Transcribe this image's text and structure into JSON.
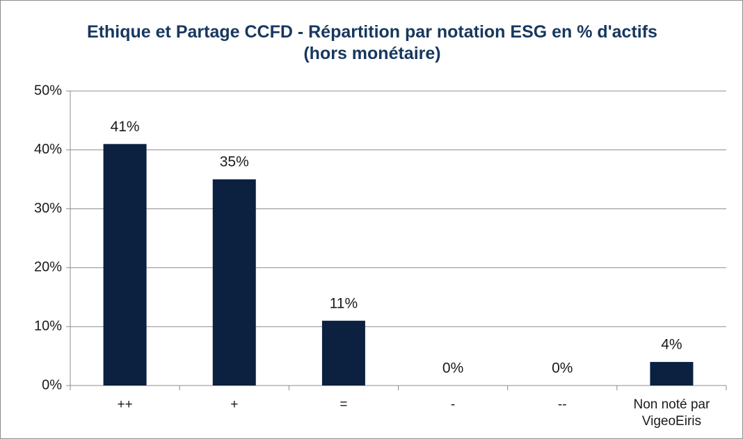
{
  "chart_data": {
    "type": "bar",
    "title": "Ethique et Partage CCFD - Répartition par notation ESG en % d'actifs (hors monétaire)",
    "categories": [
      "++",
      "+",
      "=",
      "-",
      "--",
      "Non noté par VigeoEiris"
    ],
    "values": [
      41,
      35,
      11,
      0,
      0,
      4
    ],
    "value_labels": [
      "41%",
      "35%",
      "11%",
      "0%",
      "0%",
      "4%"
    ],
    "color": "#0c2040",
    "ylim": [
      0,
      50
    ],
    "yticks": [
      {
        "value": 0,
        "label": "0%"
      },
      {
        "value": 10,
        "label": "10%"
      },
      {
        "value": 20,
        "label": "20%"
      },
      {
        "value": 30,
        "label": "30%"
      },
      {
        "value": 40,
        "label": "40%"
      },
      {
        "value": 50,
        "label": "50%"
      }
    ],
    "grid": true
  }
}
